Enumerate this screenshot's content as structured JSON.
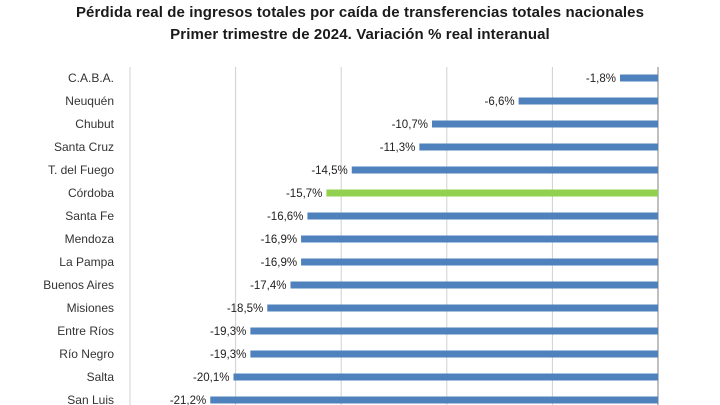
{
  "chart_data": {
    "type": "bar",
    "orientation": "horizontal",
    "title": "Pérdida real de ingresos totales por caída de transferencias totales nacionales",
    "subtitle": "Primer trimestre de 2024. Variación % real interanual",
    "xlabel": "",
    "ylabel": "",
    "grid": true,
    "xlim": [
      -25,
      0
    ],
    "categories": [
      "C.A.B.A.",
      "Neuquén",
      "Chubut",
      "Santa Cruz",
      "T. del Fuego",
      "Córdoba",
      "Santa Fe",
      "Mendoza",
      "La Pampa",
      "Buenos Aires",
      "Misiones",
      "Entre Ríos",
      "Río Negro",
      "Salta",
      "San Luis"
    ],
    "values": [
      -1.8,
      -6.6,
      -10.7,
      -11.3,
      -14.5,
      -15.7,
      -16.6,
      -16.9,
      -16.9,
      -17.4,
      -18.5,
      -19.3,
      -19.3,
      -20.1,
      -21.2
    ],
    "data_labels": [
      "-1,8%",
      "-6,6%",
      "-10,7%",
      "-11,3%",
      "-14,5%",
      "-15,7%",
      "-16,6%",
      "-16,9%",
      "-16,9%",
      "-17,4%",
      "-18,5%",
      "-19,3%",
      "-19,3%",
      "-20,1%",
      "-21,2%"
    ],
    "highlight_category": "Córdoba",
    "colors": {
      "bar": "#4f81bd",
      "highlight": "#92d050",
      "grid": "#d0d0d0",
      "axis": "#808080"
    }
  }
}
